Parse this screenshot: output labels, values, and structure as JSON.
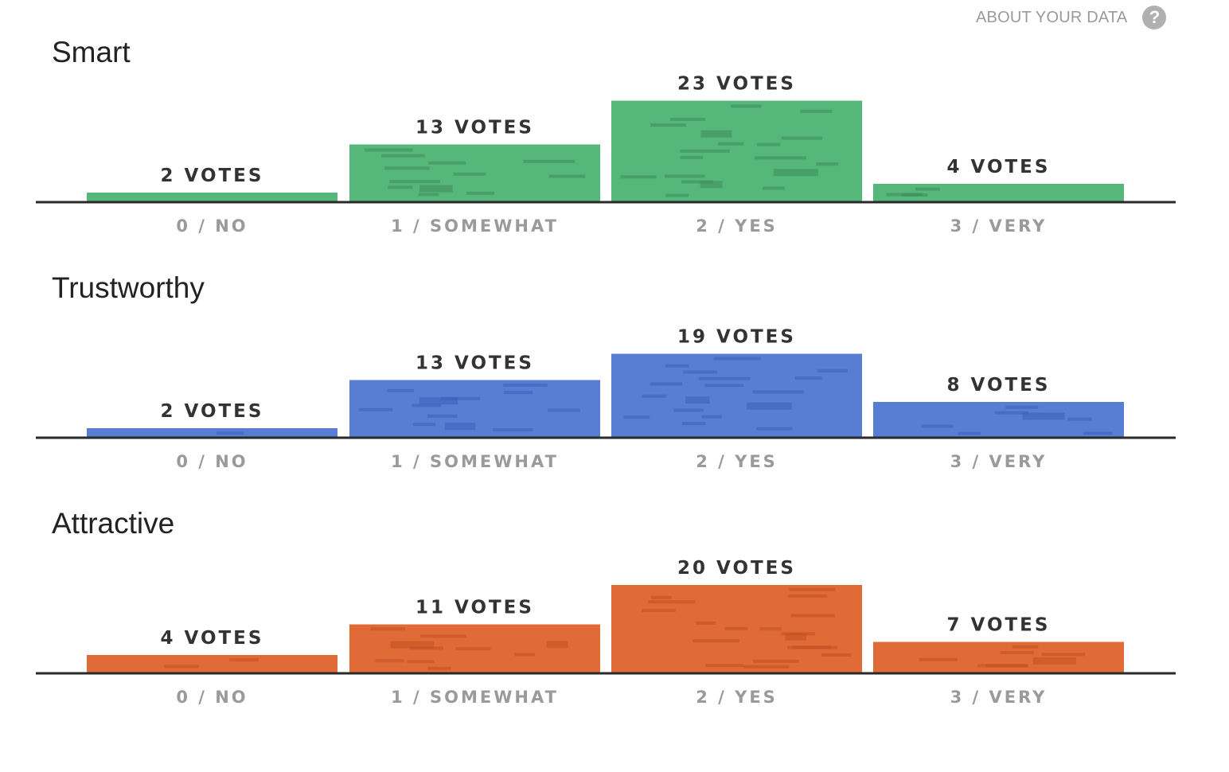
{
  "header": {
    "about_label": "ABOUT YOUR DATA",
    "help_icon_glyph": "?"
  },
  "chart_data": [
    {
      "type": "bar",
      "title": "Smart",
      "categories": [
        "0 / NO",
        "1 / SOMEWHAT",
        "2 / YES",
        "3 / VERY"
      ],
      "values": [
        2,
        13,
        23,
        4
      ],
      "value_labels": [
        "2 VOTES",
        "13 VOTES",
        "23 VOTES",
        "4 VOTES"
      ],
      "color": "#55b77a",
      "accent": "#3e8d5a",
      "grid": false
    },
    {
      "type": "bar",
      "title": "Trustworthy",
      "categories": [
        "0 / NO",
        "1 / SOMEWHAT",
        "2 / YES",
        "3 / VERY"
      ],
      "values": [
        2,
        13,
        19,
        8
      ],
      "value_labels": [
        "2 VOTES",
        "13 VOTES",
        "19 VOTES",
        "8 VOTES"
      ],
      "color": "#587ed3",
      "accent": "#3a60b8",
      "grid": false
    },
    {
      "type": "bar",
      "title": "Attractive",
      "categories": [
        "0 / NO",
        "1 / SOMEWHAT",
        "2 / YES",
        "3 / VERY"
      ],
      "values": [
        4,
        11,
        20,
        7
      ],
      "value_labels": [
        "4 VOTES",
        "11 VOTES",
        "20 VOTES",
        "7 VOTES"
      ],
      "color": "#e06b37",
      "accent": "#c24f22",
      "grid": false
    }
  ]
}
